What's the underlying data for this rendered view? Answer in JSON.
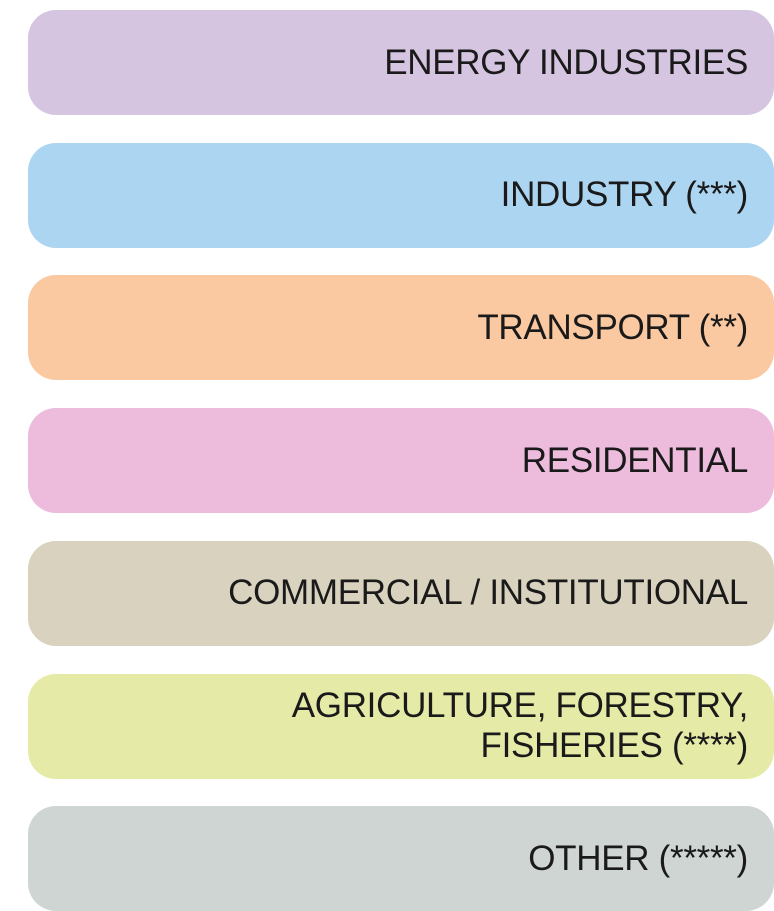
{
  "legend": {
    "items": [
      {
        "lines": [
          "ENERGY INDUSTRIES"
        ],
        "color": "#d5c5e1"
      },
      {
        "lines": [
          "INDUSTRY (***)"
        ],
        "color": "#acd5f1"
      },
      {
        "lines": [
          "TRANSPORT (**)"
        ],
        "color": "#fac9a1"
      },
      {
        "lines": [
          "RESIDENTIAL"
        ],
        "color": "#edbbdc"
      },
      {
        "lines": [
          "COMMERCIAL / INSTITUTIONAL"
        ],
        "color": "#d9d2bf"
      },
      {
        "lines": [
          "AGRICULTURE, FORESTRY,",
          "FISHERIES (****)"
        ],
        "color": "#e5eaa7"
      },
      {
        "lines": [
          "OTHER (*****)"
        ],
        "color": "#cfd5d3"
      }
    ]
  }
}
